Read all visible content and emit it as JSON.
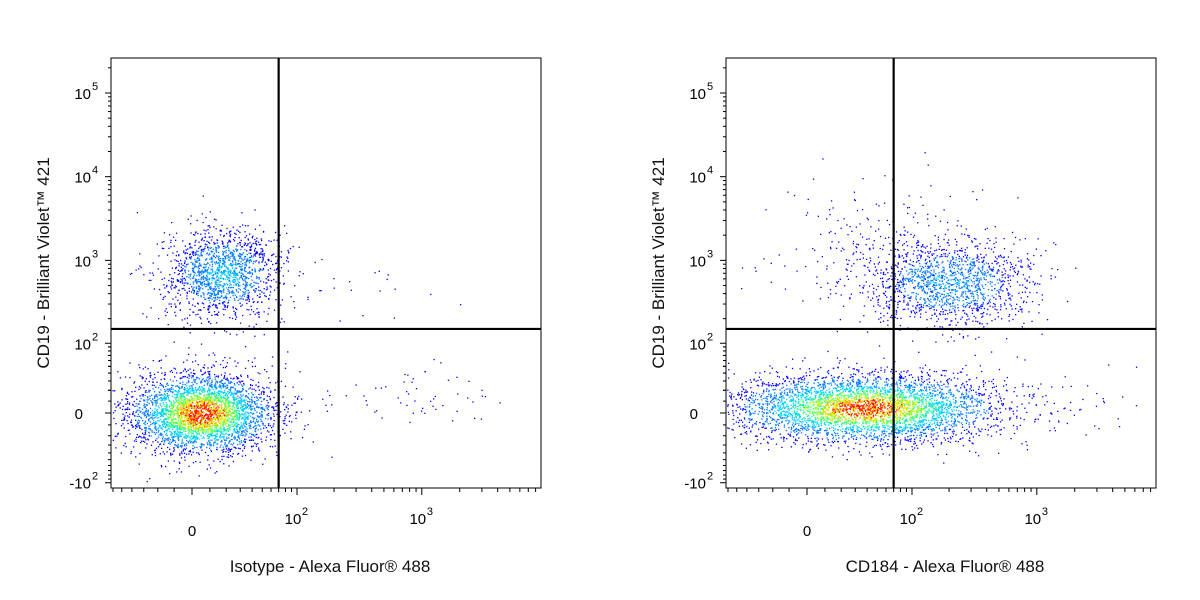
{
  "chart_data": [
    {
      "type": "scatter",
      "subtype": "flow-cytometry-density-dot-plot",
      "xlabel": "Isotype - Alexa Fluor® 488",
      "ylabel": "CD19 - Brilliant Violet™ 421",
      "x_scale": "biexponential",
      "y_scale": "biexponential",
      "x_ticks": [
        {
          "label": "0",
          "value": 0
        },
        {
          "base": "10",
          "exp": "2",
          "value": 100
        },
        {
          "base": "10",
          "exp": "3",
          "value": 1000
        }
      ],
      "y_ticks": [
        {
          "base": "10",
          "exp": "5",
          "value": 100000
        },
        {
          "base": "10",
          "exp": "4",
          "value": 10000
        },
        {
          "base": "10",
          "exp": "3",
          "value": 1000
        },
        {
          "base": "10",
          "exp": "2",
          "value": 100
        },
        {
          "label": "0",
          "value": 0
        },
        {
          "base": "-10",
          "exp": "2",
          "value": -100
        }
      ],
      "quadrant_gate": {
        "x": 70,
        "y": 150
      },
      "populations": [
        {
          "name": "CD19- cells",
          "x_center": 5,
          "y_center": 0,
          "density": "very high"
        },
        {
          "name": "CD19+ cells",
          "x_center": 15,
          "y_center": 700,
          "density": "medium"
        }
      ],
      "grid": false,
      "legend": "none"
    },
    {
      "type": "scatter",
      "subtype": "flow-cytometry-density-dot-plot",
      "xlabel": "CD184 - Alexa Fluor® 488",
      "ylabel": "CD19 - Brilliant Violet™ 421",
      "x_scale": "biexponential",
      "y_scale": "biexponential",
      "x_ticks": [
        {
          "label": "0",
          "value": 0
        },
        {
          "base": "10",
          "exp": "2",
          "value": 100
        },
        {
          "base": "10",
          "exp": "3",
          "value": 1000
        }
      ],
      "y_ticks": [
        {
          "base": "10",
          "exp": "5",
          "value": 100000
        },
        {
          "base": "10",
          "exp": "4",
          "value": 10000
        },
        {
          "base": "10",
          "exp": "3",
          "value": 1000
        },
        {
          "base": "10",
          "exp": "2",
          "value": 100
        },
        {
          "label": "0",
          "value": 0
        },
        {
          "base": "-10",
          "exp": "2",
          "value": -100
        }
      ],
      "quadrant_gate": {
        "x": 70,
        "y": 150
      },
      "populations": [
        {
          "name": "CD19- cells",
          "x_center": 40,
          "y_center": 0,
          "density": "very high"
        },
        {
          "name": "CD19+ CD184+ cells",
          "x_center": 150,
          "y_center": 800,
          "density": "medium"
        }
      ],
      "grid": false,
      "legend": "none"
    }
  ],
  "colors": {
    "density_low": "#0000ff",
    "density_mid": "#00c8ff",
    "density_midhigh": "#40ff40",
    "density_high": "#ffd000",
    "density_max": "#ff0000",
    "frame": "#000000"
  }
}
